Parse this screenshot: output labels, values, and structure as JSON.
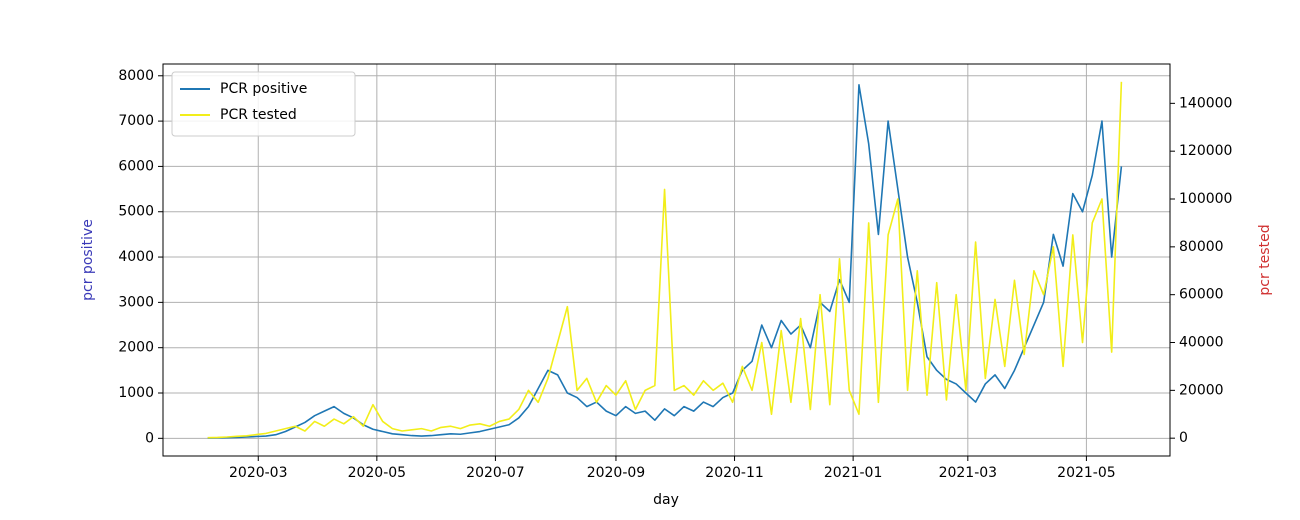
{
  "chart_data": {
    "type": "line",
    "xlabel": "day",
    "ylabel": "pcr positive",
    "y2label": "pcr tested",
    "ylabel_color": "#3a3ab8",
    "y2label_color": "#d03030",
    "grid": true,
    "legend": "upper left",
    "x": [
      18296,
      18301,
      18306,
      18311,
      18316,
      18321,
      18326,
      18331,
      18336,
      18341,
      18346,
      18351,
      18356,
      18361,
      18366,
      18371,
      18376,
      18381,
      18386,
      18391,
      18396,
      18401,
      18406,
      18411,
      18416,
      18421,
      18426,
      18431,
      18436,
      18441,
      18446,
      18451,
      18456,
      18461,
      18466,
      18471,
      18476,
      18481,
      18486,
      18491,
      18496,
      18501,
      18506,
      18511,
      18516,
      18521,
      18526,
      18531,
      18536,
      18541,
      18546,
      18551,
      18556,
      18561,
      18566,
      18571,
      18576,
      18581,
      18586,
      18591,
      18596,
      18601,
      18606,
      18611,
      18616,
      18621,
      18626,
      18631,
      18636,
      18641,
      18646,
      18651,
      18656,
      18661,
      18666,
      18671,
      18676,
      18681,
      18686,
      18691,
      18696,
      18701,
      18706,
      18711,
      18716,
      18721,
      18726,
      18731,
      18736,
      18741,
      18746,
      18751,
      18756,
      18761,
      18766
    ],
    "series": [
      {
        "name": "PCR positive",
        "color": "#1f77b4",
        "axis": "y",
        "values": [
          5,
          10,
          15,
          20,
          30,
          40,
          50,
          80,
          150,
          250,
          350,
          500,
          600,
          700,
          550,
          450,
          300,
          200,
          150,
          100,
          80,
          60,
          50,
          60,
          80,
          100,
          90,
          120,
          150,
          200,
          250,
          300,
          450,
          700,
          1100,
          1500,
          1400,
          1000,
          900,
          700,
          800,
          600,
          500,
          700,
          550,
          600,
          400,
          650,
          500,
          700,
          600,
          800,
          700,
          900,
          1000,
          1500,
          1700,
          2500,
          2000,
          2600,
          2300,
          2500,
          2000,
          3000,
          2800,
          3500,
          3000,
          7800,
          6500,
          4500,
          7000,
          5500,
          4000,
          3000,
          1800,
          1500,
          1300,
          1200,
          1000,
          800,
          1200,
          1400,
          1100,
          1500,
          2000,
          2500,
          3000,
          4500,
          3800,
          5400,
          5000,
          5800,
          7000,
          4000,
          6000
        ]
      },
      {
        "name": "PCR tested",
        "color": "#f2ee1a",
        "axis": "y2",
        "values": [
          200,
          300,
          500,
          800,
          1000,
          1500,
          2000,
          3000,
          4000,
          5000,
          3000,
          7000,
          5000,
          8000,
          6000,
          9000,
          5000,
          14000,
          7000,
          4000,
          3000,
          3500,
          4000,
          3000,
          4500,
          5000,
          4000,
          5500,
          6000,
          5000,
          7000,
          8000,
          12000,
          20000,
          15000,
          25000,
          40000,
          55000,
          20000,
          25000,
          15000,
          22000,
          18000,
          24000,
          12000,
          20000,
          22000,
          104000,
          20000,
          22000,
          18000,
          24000,
          20000,
          23000,
          15000,
          30000,
          20000,
          40000,
          10000,
          45000,
          15000,
          50000,
          12000,
          60000,
          14000,
          75000,
          20000,
          10000,
          90000,
          15000,
          85000,
          100000,
          20000,
          70000,
          18000,
          65000,
          16000,
          60000,
          20000,
          82000,
          25000,
          58000,
          30000,
          66000,
          35000,
          70000,
          60000,
          80000,
          30000,
          85000,
          40000,
          90000,
          100000,
          36000,
          149000
        ]
      }
    ],
    "xlim": [
      18273,
      18791
    ],
    "xticks": [
      {
        "value": 18322,
        "label": "2020-03"
      },
      {
        "value": 18383,
        "label": "2020-05"
      },
      {
        "value": 18444,
        "label": "2020-07"
      },
      {
        "value": 18506,
        "label": "2020-09"
      },
      {
        "value": 18567,
        "label": "2020-11"
      },
      {
        "value": 18628,
        "label": "2021-01"
      },
      {
        "value": 18687,
        "label": "2021-03"
      },
      {
        "value": 18748,
        "label": "2021-05"
      }
    ],
    "ylim": [
      -390,
      8260
    ],
    "yticks": [
      0,
      1000,
      2000,
      3000,
      4000,
      5000,
      6000,
      7000,
      8000
    ],
    "y2lim": [
      -7450,
      156450
    ],
    "y2ticks": [
      0,
      20000,
      40000,
      60000,
      80000,
      100000,
      120000,
      140000
    ]
  }
}
